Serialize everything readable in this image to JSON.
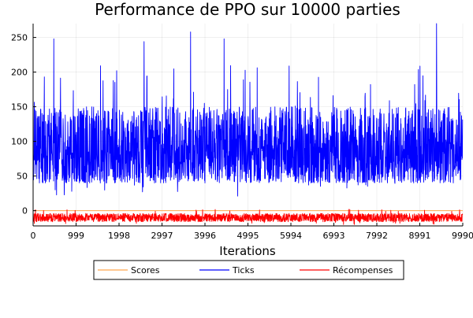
{
  "chart_data": {
    "type": "line",
    "title": "Performance de PPO sur 10000 parties",
    "xlabel": "Iterations",
    "ylabel": "",
    "xlim": [
      0,
      9990
    ],
    "ylim": [
      -22,
      270
    ],
    "x_ticks": [
      0,
      999,
      1998,
      2997,
      3996,
      4995,
      5994,
      6993,
      7992,
      8991,
      9990
    ],
    "y_ticks": [
      0,
      50,
      100,
      150,
      200,
      250
    ],
    "grid": true,
    "legend_position": "bottom-outside",
    "series": [
      {
        "name": "Scores",
        "color": "#ffa64d",
        "pattern": "constant",
        "value": 0
      },
      {
        "name": "Ticks",
        "color": "#0000ff",
        "pattern": "noisy",
        "min": 20,
        "typical_low": 40,
        "mean": 85,
        "typical_high": 150,
        "max": 270,
        "peaks": [
          {
            "x": 480,
            "y": 248
          },
          {
            "x": 2580,
            "y": 244
          },
          {
            "x": 3660,
            "y": 258
          },
          {
            "x": 4440,
            "y": 248
          },
          {
            "x": 9380,
            "y": 270
          }
        ]
      },
      {
        "name": "Récompenses",
        "color": "#ff0000",
        "pattern": "noisy",
        "min": -20,
        "mean": -10,
        "max": 2
      }
    ]
  }
}
